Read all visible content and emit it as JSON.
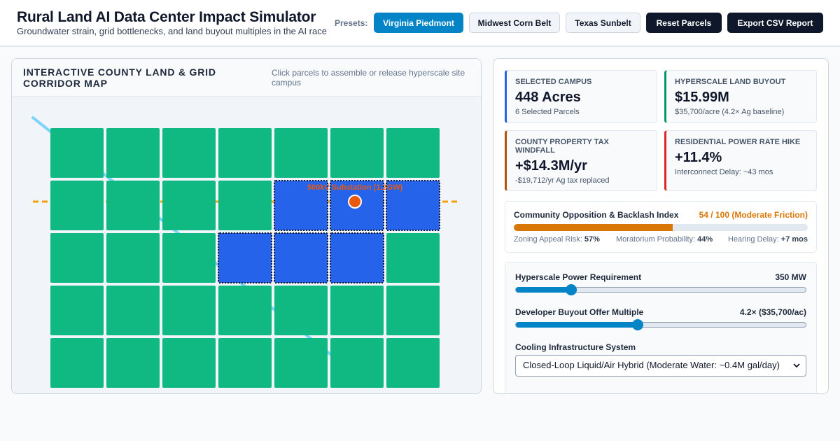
{
  "header": {
    "title": "Rural Land AI Data Center Impact Simulator",
    "subtitle": "Groundwater strain, grid bottlenecks, and land buyout multiples in the AI race",
    "presets_label": "Presets:",
    "presets": [
      {
        "label": "Virginia Piedmont",
        "active": true
      },
      {
        "label": "Midwest Corn Belt",
        "active": false
      },
      {
        "label": "Texas Sunbelt",
        "active": false
      }
    ],
    "reset_label": "Reset Parcels",
    "export_label": "Export CSV Report"
  },
  "map": {
    "title": "Interactive County Land & Grid Corridor Map",
    "hint": "Click parcels to assemble or release hyperscale site campus",
    "substation_label": "500kV Substation (1.2GW)",
    "grid": {
      "rows": 5,
      "cols": 7
    },
    "selected_parcels": [
      [
        1,
        4
      ],
      [
        1,
        5
      ],
      [
        1,
        6
      ],
      [
        2,
        3
      ],
      [
        2,
        4
      ],
      [
        2,
        5
      ]
    ],
    "colors": {
      "farmland": "#10b981",
      "selected": "#2563eb",
      "transmission": "#f59e0b",
      "river": "#7dd3fc",
      "substation": "#ea580c"
    }
  },
  "metrics": [
    {
      "label": "Selected Campus",
      "value": "448 Acres",
      "sub": "6 Selected Parcels",
      "accent": "#2563eb"
    },
    {
      "label": "Hyperscale Land Buyout",
      "value": "$15.99M",
      "sub": "$35,700/acre (4.2× Ag baseline)",
      "accent": "#059669"
    },
    {
      "label": "County Property Tax Windfall",
      "value": "+$14.3M/yr",
      "sub": "-$19,712/yr Ag tax replaced",
      "accent": "#b45309"
    },
    {
      "label": "Residential Power Rate Hike",
      "value": "+11.4%",
      "sub": "Interconnect Delay: ~43 mos",
      "accent": "#dc2626"
    }
  ],
  "opposition": {
    "title": "Community Opposition & Backlash Index",
    "score": "54 / 100 (Moderate Friction)",
    "level": 0.54,
    "zoning_label": "Zoning Appeal Risk:",
    "zoning_value": "57%",
    "moratorium_label": "Moratorium Probability:",
    "moratorium_value": "44%",
    "hearing_label": "Hearing Delay:",
    "hearing_value": "+7 mos"
  },
  "controls": {
    "power": {
      "label": "Hyperscale Power Requirement",
      "value": "350 MW",
      "level": 0.19
    },
    "buyout": {
      "label": "Developer Buyout Offer Multiple",
      "value": "4.2× ($35,700/ac)",
      "level": 0.42
    },
    "cooling": {
      "label": "Cooling Infrastructure System",
      "selected": "Closed-Loop Liquid/Air Hybrid (Moderate Water: ~0.4M gal/day)"
    }
  }
}
